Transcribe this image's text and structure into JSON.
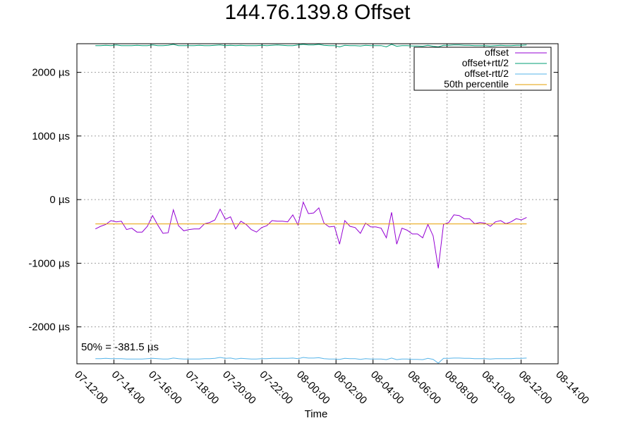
{
  "chart_data": {
    "type": "line",
    "title": "144.76.139.8 Offset",
    "xlabel": "Time",
    "ylabel": "",
    "x_tick_labels": [
      "07-12:00",
      "07-14:00",
      "07-16:00",
      "07-18:00",
      "07-20:00",
      "07-22:00",
      "08-00:00",
      "08-02:00",
      "08-04:00",
      "08-06:00",
      "08-08:00",
      "08-10:00",
      "08-12:00",
      "08-14:00"
    ],
    "x_range_hours": [
      0,
      26
    ],
    "y_ticks": [
      {
        "value": 2000,
        "label": "2000 µs"
      },
      {
        "value": 1000,
        "label": "1000 µs"
      },
      {
        "value": 0,
        "label": "0 µs"
      },
      {
        "value": -1000,
        "label": "-1000 µs"
      },
      {
        "value": -2000,
        "label": "-2000 µs"
      }
    ],
    "ylim": [
      -2580,
      2450
    ],
    "grid": true,
    "legend_position": "top-right",
    "annotation": "50% = -381.5 µs",
    "series": [
      {
        "name": "offset",
        "color": "#9400d3",
        "values": [
          -460,
          -420,
          -390,
          -330,
          -350,
          -340,
          -470,
          -450,
          -510,
          -510,
          -420,
          -250,
          -400,
          -530,
          -520,
          -160,
          -410,
          -490,
          -470,
          -460,
          -460,
          -380,
          -360,
          -320,
          -150,
          -310,
          -270,
          -460,
          -340,
          -390,
          -470,
          -510,
          -440,
          -410,
          -330,
          -340,
          -340,
          -350,
          -240,
          -400,
          -40,
          -220,
          -210,
          -130,
          -370,
          -430,
          -420,
          -700,
          -330,
          -420,
          -440,
          -530,
          -370,
          -430,
          -430,
          -450,
          -600,
          -200,
          -700,
          -450,
          -480,
          -540,
          -540,
          -600,
          -390,
          -570,
          -1080,
          -390,
          -360,
          -240,
          -250,
          -300,
          -300,
          -380,
          -360,
          -370,
          -420,
          -350,
          -330,
          -380,
          -350,
          -300,
          -320,
          -280
        ]
      },
      {
        "name": "offset+rtt/2",
        "color": "#009e73",
        "values": [
          2420,
          2420,
          2425,
          2420,
          2430,
          2420,
          2420,
          2420,
          2425,
          2420,
          2420,
          2430,
          2420,
          2420,
          2425,
          2440,
          2420,
          2420,
          2420,
          2420,
          2425,
          2420,
          2420,
          2425,
          2430,
          2420,
          2425,
          2420,
          2425,
          2420,
          2420,
          2420,
          2425,
          2420,
          2425,
          2430,
          2425,
          2420,
          2420,
          2430,
          2440,
          2430,
          2430,
          2440,
          2425,
          2420,
          2420,
          2400,
          2425,
          2420,
          2420,
          2415,
          2425,
          2420,
          2420,
          2420,
          2400,
          2440,
          2410,
          2420,
          2420,
          2415,
          2415,
          2410,
          2425,
          2410,
          2400,
          2425,
          2425,
          2430,
          2430,
          2425,
          2425,
          2420,
          2420,
          2420,
          2415,
          2420,
          2425,
          2420,
          2420,
          2425,
          2425,
          2430
        ]
      },
      {
        "name": "offset-rtt/2",
        "color": "#56b4e9",
        "values": [
          -2500,
          -2500,
          -2495,
          -2500,
          -2500,
          -2500,
          -2505,
          -2505,
          -2505,
          -2505,
          -2500,
          -2495,
          -2500,
          -2505,
          -2505,
          -2490,
          -2500,
          -2505,
          -2505,
          -2505,
          -2505,
          -2500,
          -2500,
          -2495,
          -2480,
          -2495,
          -2490,
          -2505,
          -2495,
          -2500,
          -2505,
          -2505,
          -2500,
          -2500,
          -2495,
          -2495,
          -2495,
          -2495,
          -2490,
          -2500,
          -2480,
          -2490,
          -2490,
          -2485,
          -2500,
          -2505,
          -2505,
          -2510,
          -2495,
          -2500,
          -2500,
          -2510,
          -2500,
          -2505,
          -2505,
          -2505,
          -2515,
          -2490,
          -2515,
          -2505,
          -2505,
          -2510,
          -2510,
          -2515,
          -2495,
          -2510,
          -2570,
          -2495,
          -2495,
          -2490,
          -2490,
          -2495,
          -2495,
          -2500,
          -2500,
          -2500,
          -2505,
          -2500,
          -2500,
          -2500,
          -2500,
          -2495,
          -2495,
          -2490
        ]
      },
      {
        "name": "50th percentile",
        "color": "#e69f00",
        "constant": -381.5
      }
    ]
  }
}
